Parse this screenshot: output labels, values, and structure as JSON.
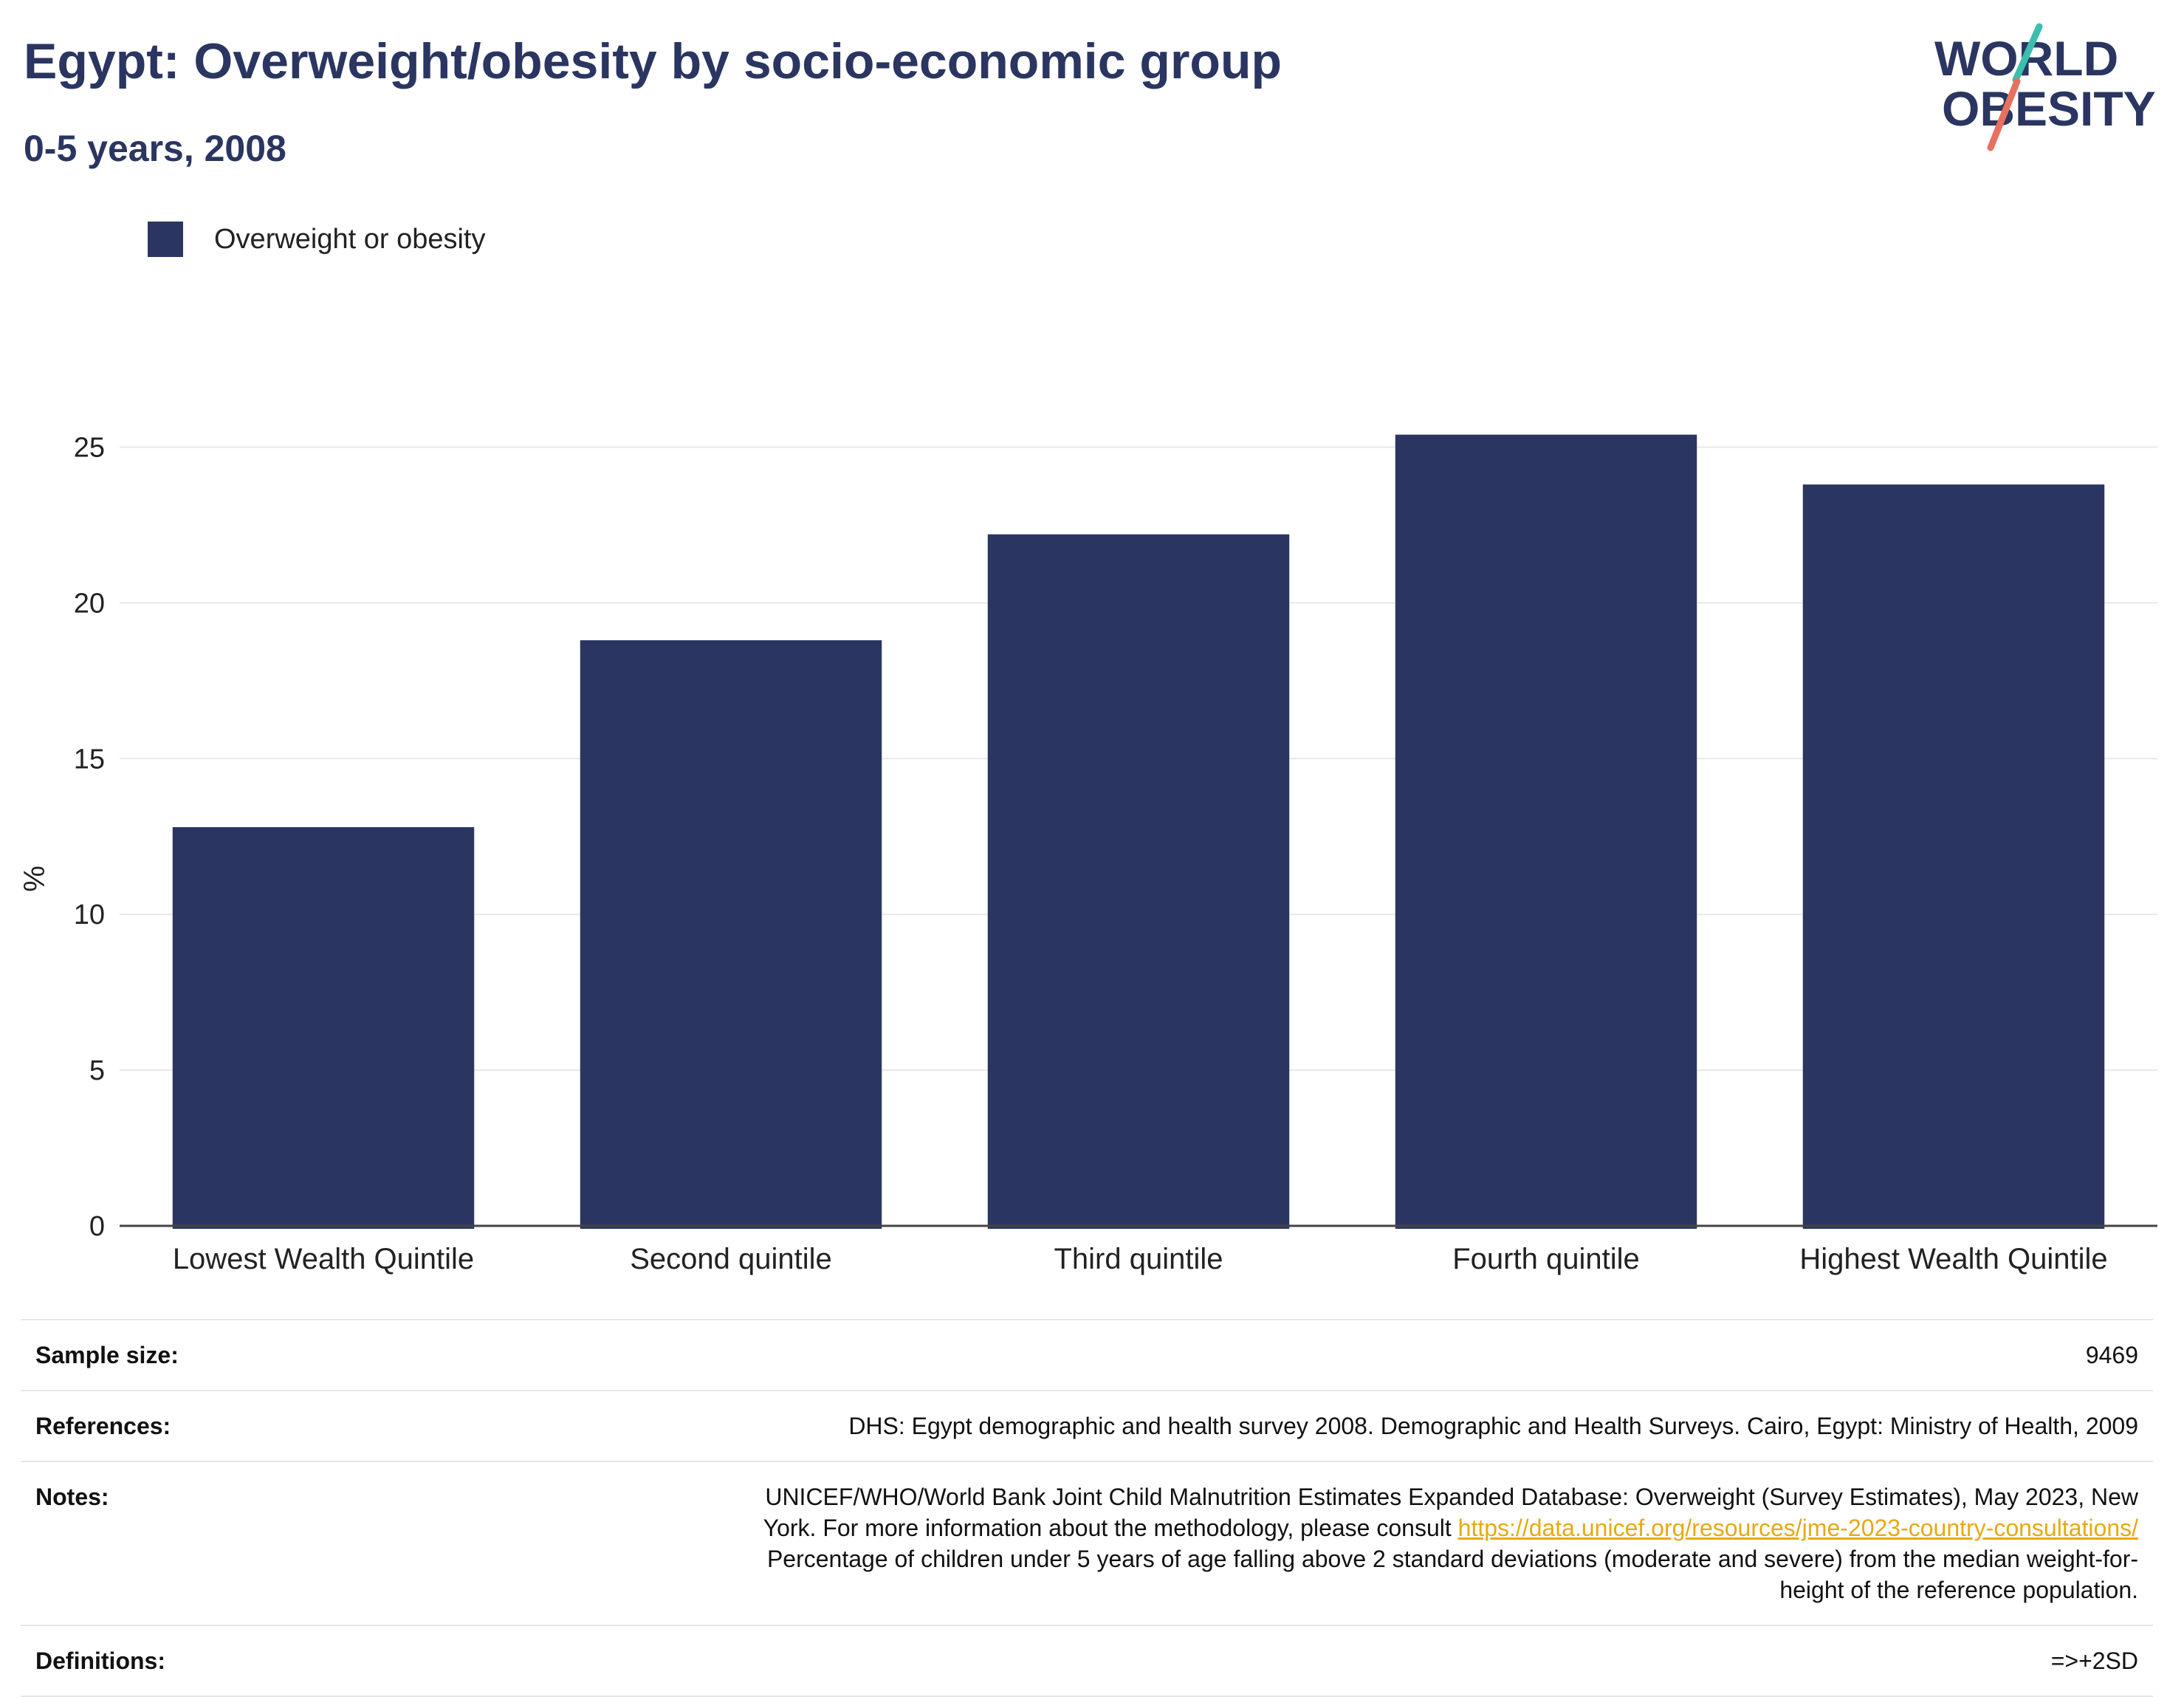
{
  "header": {
    "title": "Egypt: Overweight/obesity by socio-economic group",
    "subtitle": "0-5 years, 2008"
  },
  "logo": {
    "line1": "WORLD",
    "line2": "OBESITY",
    "colors": {
      "text": "#2a3661",
      "slash_top": "#3bbdb0",
      "slash_bottom": "#e8705f"
    }
  },
  "legend": {
    "label": "Overweight or obesity",
    "color": "#2a3661"
  },
  "chart_data": {
    "type": "bar",
    "categories": [
      "Lowest Wealth Quintile",
      "Second quintile",
      "Third quintile",
      "Fourth quintile",
      "Highest Wealth Quintile"
    ],
    "series": [
      {
        "name": "Overweight or obesity",
        "values": [
          12.8,
          18.8,
          22.2,
          25.4,
          23.8
        ],
        "color": "#2a3661"
      }
    ],
    "ylabel": "%",
    "ylim": [
      0,
      27.5
    ],
    "yticks": [
      0,
      5,
      10,
      15,
      20,
      25
    ],
    "grid": true,
    "legend_position": "top-left"
  },
  "info": {
    "sample_size_label": "Sample size:",
    "sample_size_value": "9469",
    "references_label": "References:",
    "references_value": "DHS: Egypt demographic and health survey 2008. Demographic and Health Surveys. Cairo, Egypt: Ministry of Health, 2009",
    "notes_label": "Notes:",
    "notes_line1": "UNICEF/WHO/World Bank Joint Child Malnutrition Estimates Expanded Database: Overweight (Survey Estimates), May 2023, New",
    "notes_line2_prefix": "York. For more information about the methodology, please consult ",
    "notes_link": "https://data.unicef.org/resources/jme-2023-country-consultations/",
    "notes_line3": "Percentage of children under 5 years of age falling above 2 standard deviations (moderate and severe) from the median weight-for-",
    "notes_line4": "height of the reference population.",
    "definitions_label": "Definitions:",
    "definitions_value": "=>+2SD"
  }
}
